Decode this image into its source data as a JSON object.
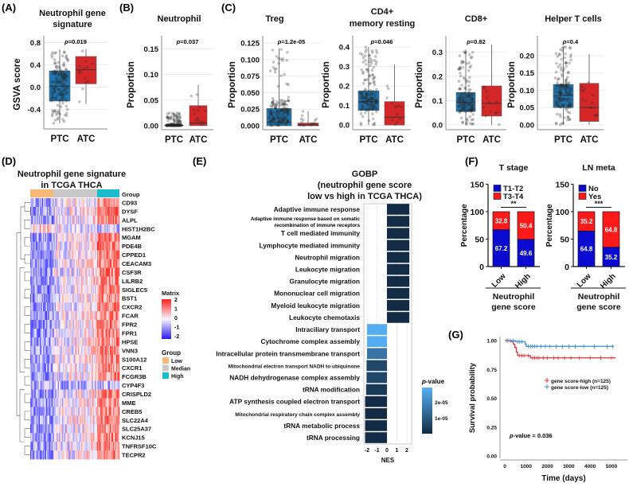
{
  "panel_labels": [
    "(A)",
    "(B)",
    "(C)",
    "(D)",
    "(E)",
    "(F)",
    "(G)"
  ],
  "colors": {
    "ptc": "#1f77b4",
    "atc": "#d62728",
    "low": "#f8b878",
    "median": "#c8c8c8",
    "high": "#1bbccc",
    "nes_dark": "#132b43",
    "nes_light": "#56b1f7",
    "stack_bottom": "#0a0ad0",
    "stack_top": "#ff1a1a",
    "km_high": "#e8313a",
    "km_low": "#3d8fd1"
  },
  "chart_data": [
    {
      "type": "box",
      "title": [
        "Neutrophil gene",
        "signature"
      ],
      "ylabel": "GSVA score",
      "p_label": "p",
      "p_value": "=0.019",
      "categories": [
        "PTC",
        "ATC"
      ],
      "ylim": [
        -0.75,
        0.85
      ],
      "yticks": [
        -0.4,
        0.0,
        0.4,
        0.8
      ],
      "ytick_labels": [
        "-0.4",
        "0.0",
        "0.4",
        "0.8"
      ],
      "boxes": [
        {
          "q1": -0.25,
          "median": 0.02,
          "q3": 0.29,
          "lo": -0.65,
          "hi": 0.68
        },
        {
          "q1": 0.06,
          "median": 0.31,
          "q3": 0.55,
          "lo": -0.3,
          "hi": 0.68
        }
      ]
    },
    {
      "type": "box",
      "title": [
        "Neutrophil"
      ],
      "ylabel": "Proportion",
      "p_label": "p",
      "p_value": "=0.037",
      "categories": [
        "PTC",
        "ATC"
      ],
      "ylim": [
        -0.008,
        0.168
      ],
      "yticks": [
        0,
        0.05,
        0.1,
        0.15
      ],
      "ytick_labels": [
        "0.00",
        "0.05",
        "0.10",
        "0.15"
      ],
      "boxes": [
        {
          "q1": 0,
          "median": 0.0005,
          "q3": 0.001,
          "lo": 0,
          "hi": 0.025
        },
        {
          "q1": 0,
          "median": 0.005,
          "q3": 0.039,
          "lo": 0,
          "hi": 0.08
        }
      ]
    },
    {
      "type": "box",
      "title": [
        "Treg"
      ],
      "ylabel": "Proportion",
      "p_label": "p",
      "p_value": "=1.2e-05",
      "categories": [
        "PTC",
        "ATC"
      ],
      "ylim": [
        -0.006,
        0.13
      ],
      "yticks": [
        0,
        0.025,
        0.05,
        0.075,
        0.1,
        0.125
      ],
      "ytick_labels": [
        "0.000",
        "0.025",
        "0.050",
        "0.075",
        "0.100",
        "0.125"
      ],
      "boxes": [
        {
          "q1": 0,
          "median": 0.005,
          "q3": 0.026,
          "lo": 0,
          "hi": 0.117
        },
        {
          "q1": 0,
          "median": 0.001,
          "q3": 0.004,
          "lo": 0,
          "hi": 0.022
        }
      ]
    },
    {
      "type": "box",
      "title": [
        "CD4+",
        "memory resting"
      ],
      "ylabel": "Proportion",
      "p_label": "p",
      "p_value": "=0.046",
      "categories": [
        "PTC",
        "ATC"
      ],
      "ylim": [
        -0.024,
        0.437
      ],
      "yticks": [
        0,
        0.1,
        0.2,
        0.3,
        0.4
      ],
      "ytick_labels": [
        "0.0",
        "0.1",
        "0.2",
        "0.3",
        "0.4"
      ],
      "boxes": [
        {
          "q1": 0.075,
          "median": 0.12,
          "q3": 0.175,
          "lo": 0,
          "hi": 0.4
        },
        {
          "q1": 0,
          "median": 0.04,
          "q3": 0.12,
          "lo": 0,
          "hi": 0.31
        }
      ]
    },
    {
      "type": "box",
      "title": [
        "CD8+"
      ],
      "ylabel": "Proportion",
      "p_label": "p",
      "p_value": "=0.82",
      "categories": [
        "PTC",
        "ATC"
      ],
      "ylim": [
        -0.02,
        0.35
      ],
      "yticks": [
        0,
        0.1,
        0.2,
        0.3
      ],
      "ytick_labels": [
        "0.0",
        "0.1",
        "0.2",
        "0.3"
      ],
      "boxes": [
        {
          "q1": 0.055,
          "median": 0.092,
          "q3": 0.133,
          "lo": 0,
          "hi": 0.31
        },
        {
          "q1": 0.036,
          "median": 0.088,
          "q3": 0.16,
          "lo": 0,
          "hi": 0.33
        }
      ]
    },
    {
      "type": "box",
      "title": [
        "Helper T cells"
      ],
      "ylabel": "Proportion",
      "p_label": "p",
      "p_value": "=0.4",
      "categories": [
        "PTC",
        "ATC"
      ],
      "ylim": [
        -0.014,
        0.246
      ],
      "yticks": [
        0,
        0.05,
        0.1,
        0.15,
        0.2
      ],
      "ytick_labels": [
        "0.00",
        "0.05",
        "0.10",
        "0.15",
        "0.20"
      ],
      "boxes": [
        {
          "q1": 0.05,
          "median": 0.085,
          "q3": 0.117,
          "lo": 0,
          "hi": 0.225
        },
        {
          "q1": 0.01,
          "median": 0.05,
          "q3": 0.12,
          "lo": 0,
          "hi": 0.205
        }
      ]
    },
    {
      "type": "heatmap",
      "title": [
        "Neutrophil gene signature",
        "in TCGA THCA"
      ],
      "group_label": "Group",
      "genes": [
        "CD93",
        "DYSF",
        "ALPL",
        "HIST1H2BC",
        "MGAM",
        "PDE4B",
        "CPPED1",
        "CEACAM3",
        "CSF3R",
        "LILRB2",
        "SIGLEC5",
        "BST1",
        "CXCR2",
        "FCAR",
        "FPR2",
        "FPR1",
        "HPSE",
        "VNN3",
        "S100A12",
        "CXCR1",
        "FCGR3B",
        "CYP4F3",
        "CRISPLD2",
        "MME",
        "CREB5",
        "SLC22A4",
        "SLC25A37",
        "KCNJ15",
        "TNFRSF10C",
        "TECPR2"
      ],
      "matrix_legend": {
        "title": "Matrix",
        "ticks": [
          "2",
          "1",
          "0",
          "-1",
          "-2"
        ],
        "range": [
          -2,
          2
        ]
      },
      "group_legend": {
        "title": "Group",
        "items": [
          "Low",
          "Median",
          "High"
        ]
      },
      "groups": [
        "Low",
        "Median",
        "High"
      ]
    },
    {
      "type": "bar",
      "orientation": "horizontal",
      "title": [
        "GOBP",
        "(neutrophil gene score",
        "low vs high in TCGA THCA)"
      ],
      "xlabel": "NES",
      "xlim": [
        -2.5,
        2.5
      ],
      "xticks": [
        "-2",
        "-1",
        "0",
        "1",
        "2"
      ],
      "categories": [
        "Adaptive immune response",
        "Adaptive immune response based on somatic|recombination of immune receptors",
        "T cell mediated immunity",
        "Lymphocyte mediated immunity",
        "Neutrophil migration",
        "Leukocyte migration",
        "Granulocyte migration",
        "Mononuclear cell migration",
        "Myeloid leukocyte migration",
        "Leukocyte chemotaxis",
        "Intraciliary transport",
        "Cytochrome complex assembly",
        "Intracellular protein transmembrane transport",
        "Mitochondrial electron transport NADH to ubiquinone",
        "NADH dehydrogenase complex assembly",
        "tRNA modification",
        "ATP synthesis coupled electron transport",
        "Mitochondrial respiratory chain complex assembly",
        "tRNA metabolic process",
        "tRNA processing"
      ],
      "nes": [
        2.25,
        2.25,
        2.25,
        2.25,
        2.25,
        2.25,
        2.25,
        2.25,
        2.25,
        2.25,
        -2.0,
        -2.0,
        -2.0,
        -2.05,
        -2.05,
        -2.1,
        -2.2,
        -2.2,
        -2.2,
        -2.2
      ],
      "pvalue": [
        1e-07,
        1e-07,
        1e-07,
        1e-07,
        1e-07,
        1e-07,
        1e-07,
        1e-07,
        1e-07,
        1e-07,
        2.8e-05,
        2.8e-05,
        1.6e-05,
        6e-06,
        6e-06,
        3e-06,
        1e-07,
        1e-07,
        1e-07,
        1e-07
      ],
      "legend": {
        "title": "-value",
        "title_italic": "p",
        "ticks": [
          "2e-05",
          "1e-05"
        ],
        "range": [
          0,
          2.9e-05
        ]
      }
    },
    {
      "type": "stacked_bar",
      "title": "T stage",
      "ylabel": "Percentage",
      "categories": [
        "Low",
        "High"
      ],
      "xlabel": [
        "Neutrophil",
        "gene score"
      ],
      "ylim": [
        0,
        150
      ],
      "yticks": [
        "0",
        "50",
        "100",
        "150"
      ],
      "significance": "**",
      "series": [
        {
          "name": "T1-T2",
          "values": [
            67.2,
            49.6
          ],
          "labels": [
            "67.2",
            "49.6"
          ]
        },
        {
          "name": "T3-T4",
          "values": [
            32.8,
            50.4
          ],
          "labels": [
            "32.8",
            "50.4"
          ]
        }
      ]
    },
    {
      "type": "stacked_bar",
      "title": "LN meta",
      "ylabel": "Percentage",
      "categories": [
        "Low",
        "High"
      ],
      "xlabel": [
        "Neutrophil",
        "gene score"
      ],
      "ylim": [
        0,
        150
      ],
      "yticks": [
        "0",
        "50",
        "100",
        "150"
      ],
      "significance": "***",
      "series": [
        {
          "name": "No",
          "values": [
            64.8,
            35.2
          ],
          "labels": [
            "64.8",
            "35.2"
          ]
        },
        {
          "name": "Yes",
          "values": [
            35.2,
            64.8
          ],
          "labels": [
            "35.2",
            "64.8"
          ]
        }
      ]
    },
    {
      "type": "line",
      "subtype": "kaplan-meier",
      "xlabel": "Time (days)",
      "ylabel": "Survival probability",
      "xlim": [
        0,
        5700
      ],
      "ylim": [
        0,
        1
      ],
      "xticks": [
        "0",
        "1000",
        "2000",
        "3000",
        "4000",
        "5000"
      ],
      "yticks": [
        "0.00",
        "0.25",
        "0.50",
        "0.75",
        "1.00"
      ],
      "p_text": {
        "italic": "p",
        "rest": "-value = 0.036"
      },
      "series": [
        {
          "name": "gene score-high (n=125)",
          "steps": [
            [
              0,
              1
            ],
            [
              300,
              0.99
            ],
            [
              400,
              0.97
            ],
            [
              470,
              0.94
            ],
            [
              540,
              0.9
            ],
            [
              600,
              0.87
            ],
            [
              1000,
              0.87
            ],
            [
              1200,
              0.85
            ],
            [
              5200,
              0.85
            ]
          ],
          "censor": [
            150,
            700,
            800,
            900,
            1100,
            1300,
            1400,
            1500,
            1600,
            1800,
            2000,
            2300,
            2500,
            2800,
            3100,
            3500,
            4000,
            4500,
            5000
          ]
        },
        {
          "name": "gene score-low (n=125)",
          "steps": [
            [
              0,
              1
            ],
            [
              500,
              0.99
            ],
            [
              900,
              0.99
            ],
            [
              960,
              0.97
            ],
            [
              1000,
              0.95
            ],
            [
              5100,
              0.95
            ]
          ],
          "censor": [
            100,
            250,
            400,
            600,
            700,
            800,
            1100,
            1200,
            1300,
            1400,
            1500,
            1700,
            1900,
            2100,
            2400,
            2700,
            3000,
            3300,
            3700,
            4200,
            4800,
            5050
          ]
        }
      ]
    }
  ]
}
